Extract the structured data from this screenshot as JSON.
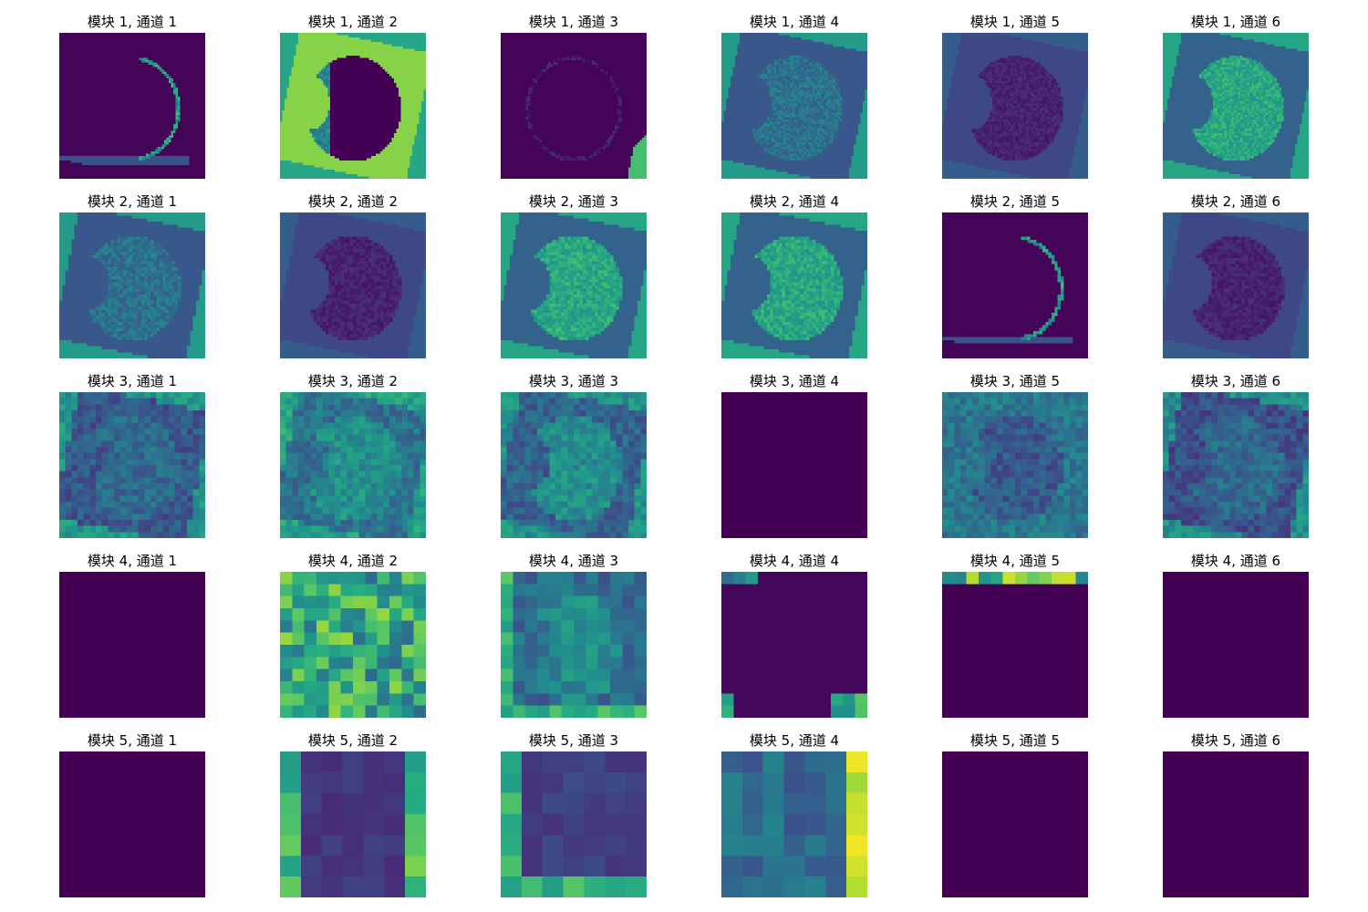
{
  "chart_data": {
    "type": "heatmap",
    "title_template": "模块 {block}, 通道 {channel}",
    "colormap": "viridis",
    "colors": {
      "background": "#ffffff",
      "cmap_min": "#440154",
      "cmap_max": "#fde725"
    },
    "panels": [
      {
        "title": "模块 1, 通道 1",
        "block": 1,
        "channel": 1,
        "grid": 64,
        "pattern": "edge_right",
        "level": 0.02
      },
      {
        "title": "模块 1, 通道 2",
        "block": 1,
        "channel": 2,
        "grid": 64,
        "pattern": "apple_dark_bright_bg",
        "level": 0.82
      },
      {
        "title": "模块 1, 通道 3",
        "block": 1,
        "channel": 3,
        "grid": 64,
        "pattern": "edge_faint",
        "level": 0.01
      },
      {
        "title": "模块 1, 通道 4",
        "block": 1,
        "channel": 4,
        "grid": 64,
        "pattern": "apple_mid",
        "level": 0.3
      },
      {
        "title": "模块 1, 通道 5",
        "block": 1,
        "channel": 5,
        "grid": 64,
        "pattern": "apple_dark",
        "level": 0.2
      },
      {
        "title": "模块 1, 通道 6",
        "block": 1,
        "channel": 6,
        "grid": 64,
        "pattern": "apple_bright",
        "level": 0.35
      },
      {
        "title": "模块 2, 通道 1",
        "block": 2,
        "channel": 1,
        "grid": 48,
        "pattern": "apple_mid",
        "level": 0.25
      },
      {
        "title": "模块 2, 通道 2",
        "block": 2,
        "channel": 2,
        "grid": 48,
        "pattern": "apple_dark",
        "level": 0.22
      },
      {
        "title": "模块 2, 通道 3",
        "block": 2,
        "channel": 3,
        "grid": 48,
        "pattern": "apple_bright",
        "level": 0.4
      },
      {
        "title": "模块 2, 通道 4",
        "block": 2,
        "channel": 4,
        "grid": 48,
        "pattern": "apple_bright",
        "level": 0.3
      },
      {
        "title": "模块 2, 通道 5",
        "block": 2,
        "channel": 5,
        "grid": 48,
        "pattern": "edge_right",
        "level": 0.02
      },
      {
        "title": "模块 2, 通道 6",
        "block": 2,
        "channel": 6,
        "grid": 48,
        "pattern": "apple_dark",
        "level": 0.38
      },
      {
        "title": "模块 3, 通道 1",
        "block": 3,
        "channel": 1,
        "grid": 24,
        "pattern": "blurred_mid",
        "level": 0.28
      },
      {
        "title": "模块 3, 通道 2",
        "block": 3,
        "channel": 2,
        "grid": 24,
        "pattern": "blurred_bright",
        "level": 0.38
      },
      {
        "title": "模块 3, 通道 3",
        "block": 3,
        "channel": 3,
        "grid": 24,
        "pattern": "blurred_bright",
        "level": 0.32
      },
      {
        "title": "模块 3, 通道 4",
        "block": 3,
        "channel": 4,
        "grid": 1,
        "pattern": "flat",
        "level": 0
      },
      {
        "title": "模块 3, 通道 5",
        "block": 3,
        "channel": 5,
        "grid": 24,
        "pattern": "blurred_dark",
        "level": 0.3
      },
      {
        "title": "模块 3, 通道 6",
        "block": 3,
        "channel": 6,
        "grid": 24,
        "pattern": "blurred_mid",
        "level": 0.25
      },
      {
        "title": "模块 4, 通道 1",
        "block": 4,
        "channel": 1,
        "grid": 1,
        "pattern": "flat",
        "level": 0
      },
      {
        "title": "模块 4, 通道 2",
        "block": 4,
        "channel": 2,
        "grid": 12,
        "pattern": "coarse_bright",
        "level": 0.45
      },
      {
        "title": "模块 4, 通道 3",
        "block": 4,
        "channel": 3,
        "grid": 12,
        "pattern": "coarse_mid",
        "level": 0.3
      },
      {
        "title": "模块 4, 通道 4",
        "block": 4,
        "channel": 4,
        "grid": 12,
        "pattern": "corners",
        "level": 0.03
      },
      {
        "title": "模块 4, 通道 5",
        "block": 4,
        "channel": 5,
        "grid": 12,
        "pattern": "top_row",
        "level": 0.0
      },
      {
        "title": "模块 4, 通道 6",
        "block": 4,
        "channel": 6,
        "grid": 1,
        "pattern": "flat",
        "level": 0
      },
      {
        "title": "模块 5, 通道 1",
        "block": 5,
        "channel": 1,
        "grid": 1,
        "pattern": "flat",
        "level": 0
      },
      {
        "title": "模块 5, 通道 2",
        "block": 5,
        "channel": 2,
        "grid": 7,
        "pattern": "frame_lr",
        "level": 0.2
      },
      {
        "title": "模块 5, 通道 3",
        "block": 5,
        "channel": 3,
        "grid": 7,
        "pattern": "frame_lb",
        "level": 0.2
      },
      {
        "title": "模块 5, 通道 4",
        "block": 5,
        "channel": 4,
        "grid": 7,
        "pattern": "frame_r",
        "level": 0.35
      },
      {
        "title": "模块 5, 通道 5",
        "block": 5,
        "channel": 5,
        "grid": 1,
        "pattern": "flat",
        "level": 0
      },
      {
        "title": "模块 5, 通道 6",
        "block": 5,
        "channel": 6,
        "grid": 1,
        "pattern": "flat",
        "level": 0
      }
    ]
  }
}
